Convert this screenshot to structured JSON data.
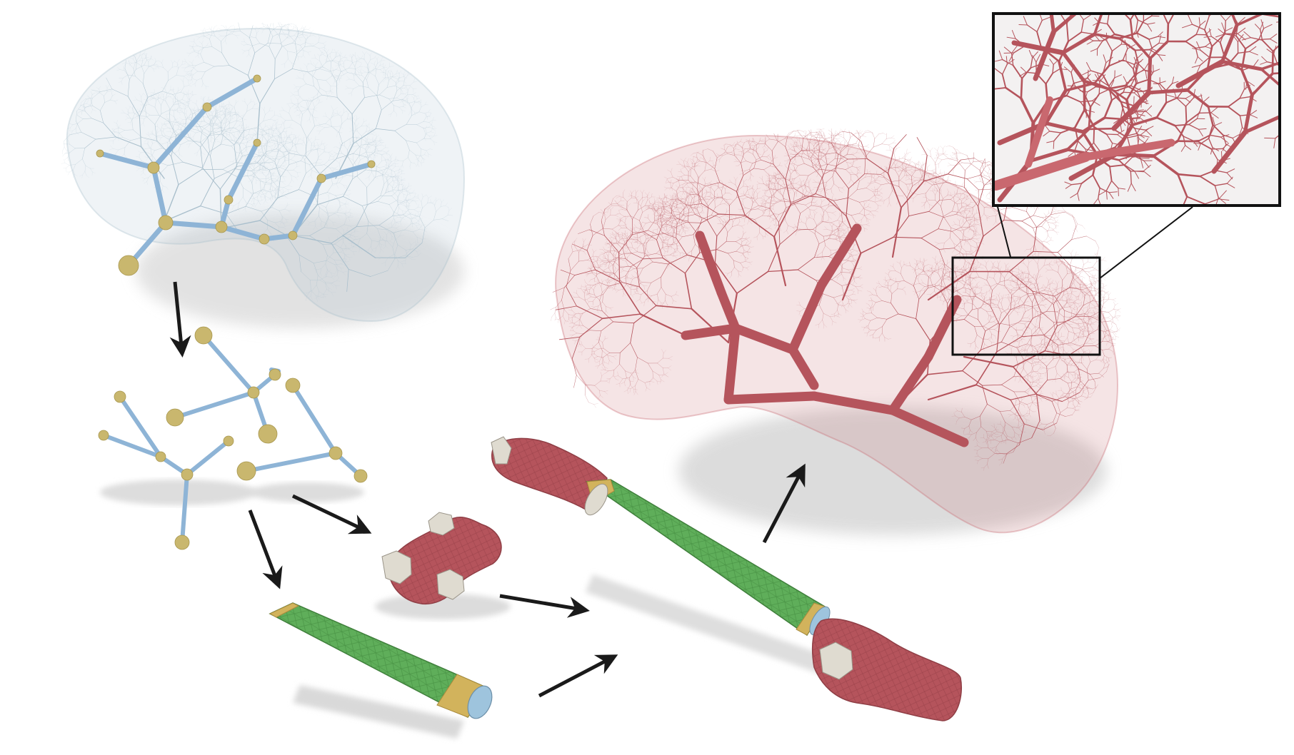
{
  "figure": {
    "background": "#ffffff",
    "colors": {
      "graph_edge": "#8eb4d6",
      "graph_edge_fine": "#a9bfcc",
      "graph_node": "#c9b76e",
      "vessel_mesh": "#b5545c",
      "vessel_mesh_light": "#c9686f",
      "segment_mesh": "#5fae5a",
      "segment_band": "#d2b35c",
      "cap_face": "#dfdbd0",
      "arrow": "#1a1a1a",
      "shadow": "#dcdcdc",
      "inset_frame": "#111111"
    },
    "panels": [
      {
        "id": "input-vascular-graph",
        "icon": "vascular-tree-graph"
      },
      {
        "id": "decomposed-subgraphs",
        "icon": "graph-pieces"
      },
      {
        "id": "bifurcation-mesh",
        "icon": "junction-mesh"
      },
      {
        "id": "straight-segment-mesh",
        "icon": "tube-segment"
      },
      {
        "id": "assembled-segment",
        "icon": "assembled-tube"
      },
      {
        "id": "final-vascular-mesh",
        "icon": "vascular-tree-mesh"
      },
      {
        "id": "zoom-inset",
        "icon": "magnified-detail"
      }
    ]
  }
}
